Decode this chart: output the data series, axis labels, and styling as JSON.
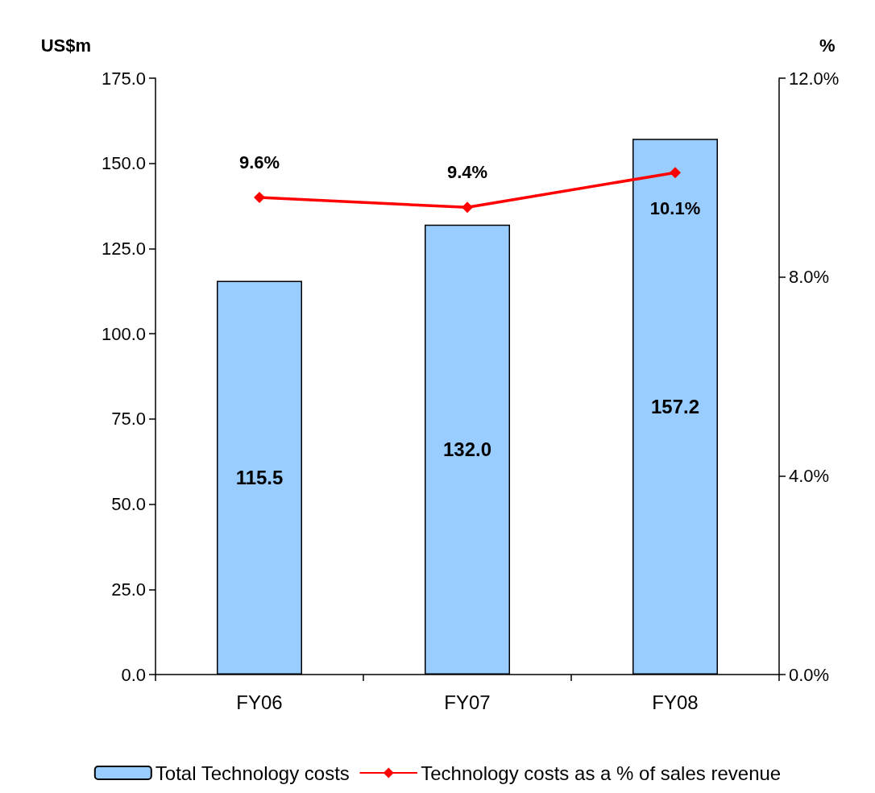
{
  "chart_data": {
    "type": "bar",
    "ylabel": "US$m",
    "y2label": "%",
    "categories": [
      "FY06",
      "FY07",
      "FY08"
    ],
    "series": [
      {
        "name": "Total Technology costs",
        "color": "#99ccff",
        "values": [
          115.5,
          132.0,
          157.2
        ],
        "value_labels": [
          "115.5",
          "132.0",
          "157.2"
        ]
      },
      {
        "name": "Technology costs as a % of sales revenue",
        "type": "line",
        "axis": "y2",
        "color": "#ff0000",
        "marker": "diamond",
        "values": [
          9.6,
          9.4,
          10.1
        ],
        "value_labels": [
          "9.6%",
          "9.4%",
          "10.1%"
        ]
      }
    ],
    "ylim": [
      0,
      175
    ],
    "yticks": [
      {
        "value": 0,
        "label": "0.0"
      },
      {
        "value": 25,
        "label": "25.0"
      },
      {
        "value": 50,
        "label": "50.0"
      },
      {
        "value": 75,
        "label": "75.0"
      },
      {
        "value": 100,
        "label": "100.0"
      },
      {
        "value": 125,
        "label": "125.0"
      },
      {
        "value": 150,
        "label": "150.0"
      },
      {
        "value": 175,
        "label": "175.0"
      }
    ],
    "y2lim": [
      0,
      12
    ],
    "y2ticks": [
      {
        "value": 0,
        "label": "0.0%"
      },
      {
        "value": 4,
        "label": "4.0%"
      },
      {
        "value": 8,
        "label": "8.0%"
      },
      {
        "value": 12,
        "label": "12.0%"
      }
    ],
    "grid": false,
    "legend": "bottom"
  }
}
